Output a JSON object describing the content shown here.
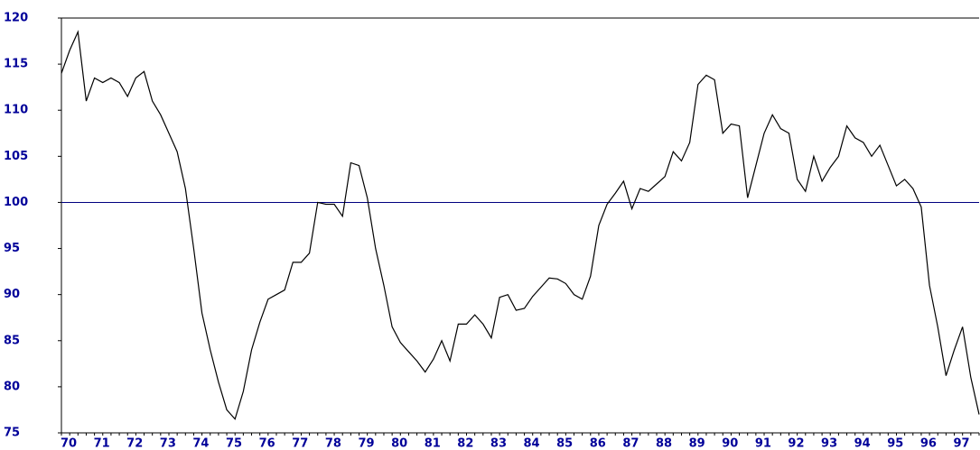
{
  "chart_data": {
    "type": "line",
    "categories": [
      "70",
      null,
      null,
      null,
      "71",
      null,
      null,
      null,
      "72",
      null,
      null,
      null,
      "73",
      null,
      null,
      null,
      "74",
      null,
      null,
      null,
      "75",
      null,
      null,
      null,
      "76",
      null,
      null,
      null,
      "77",
      null,
      null,
      null,
      "78",
      null,
      null,
      null,
      "79",
      null,
      null,
      null,
      "80",
      null,
      null,
      null,
      "81",
      null,
      null,
      null,
      "82",
      null,
      null,
      null,
      "83",
      null,
      null,
      null,
      "84",
      null,
      null,
      null,
      "85",
      null,
      null,
      null,
      "86",
      null,
      null,
      null,
      "87",
      null,
      null,
      null,
      "88",
      null,
      null,
      null,
      "89",
      null,
      null,
      null,
      "90",
      null,
      null,
      null,
      "91",
      null,
      null,
      null,
      "92",
      null,
      null,
      null,
      "93",
      null,
      null,
      null,
      "94",
      null,
      null,
      null,
      "95",
      null,
      null,
      null,
      "96",
      null,
      null,
      null,
      "97",
      null,
      null,
      null
    ],
    "values": [
      114,
      116.5,
      118.5,
      111,
      113.5,
      113,
      113.5,
      113,
      111.5,
      113.5,
      114.2,
      111,
      109.5,
      107.5,
      105.5,
      101.5,
      95,
      88,
      84,
      80.5,
      77.5,
      76.5,
      79.5,
      84,
      87,
      89.5,
      90,
      90.5,
      93.5,
      93.5,
      94.5,
      100,
      99.8,
      99.8,
      98.5,
      104.3,
      104,
      100.5,
      95,
      91,
      86.5,
      84.8,
      83.8,
      82.8,
      81.6,
      83,
      85,
      82.8,
      86.8,
      86.8,
      87.8,
      86.8,
      85.3,
      89.7,
      90,
      88.3,
      88.5,
      89.8,
      90.8,
      91.8,
      91.7,
      91.2,
      90,
      89.5,
      92,
      97.5,
      99.8,
      101,
      102.3,
      99.3,
      101.5,
      101.2,
      102,
      102.8,
      105.5,
      104.5,
      106.5,
      112.8,
      113.8,
      113.3,
      107.5,
      108.5,
      108.3,
      100.5,
      104,
      107.5,
      109.5,
      108,
      107.5,
      102.5,
      101.2,
      105,
      102.3,
      103.8,
      105,
      108.3,
      107,
      106.5,
      105,
      106.2,
      104,
      101.8,
      102.5,
      101.5,
      99.5,
      91,
      86.5,
      81.2,
      84,
      86.5,
      81,
      77
    ],
    "color": "#000000",
    "reference_line": 100,
    "reference_color": "#000080",
    "ylim": [
      75,
      120
    ],
    "yticks": [
      75,
      80,
      85,
      90,
      95,
      100,
      105,
      110,
      115,
      120
    ]
  }
}
